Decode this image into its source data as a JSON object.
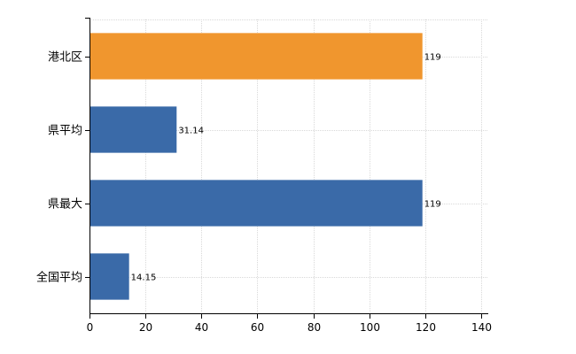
{
  "chart_data": {
    "type": "bar",
    "orientation": "horizontal",
    "categories": [
      "港北区",
      "県平均",
      "県最大",
      "全国平均"
    ],
    "values": [
      119,
      31.14,
      119,
      14.15
    ],
    "data_labels": [
      "119",
      "31.14",
      "119",
      "14.15"
    ],
    "bar_colors": [
      "#f0962e",
      "#3a6aa8",
      "#3a6aa8",
      "#3a6aa8"
    ],
    "title": "",
    "xlabel": "",
    "ylabel": "",
    "xlim": [
      0,
      140
    ],
    "x_ticks": [
      0,
      20,
      40,
      60,
      80,
      100,
      120,
      140
    ],
    "grid": true,
    "legend": "none"
  }
}
